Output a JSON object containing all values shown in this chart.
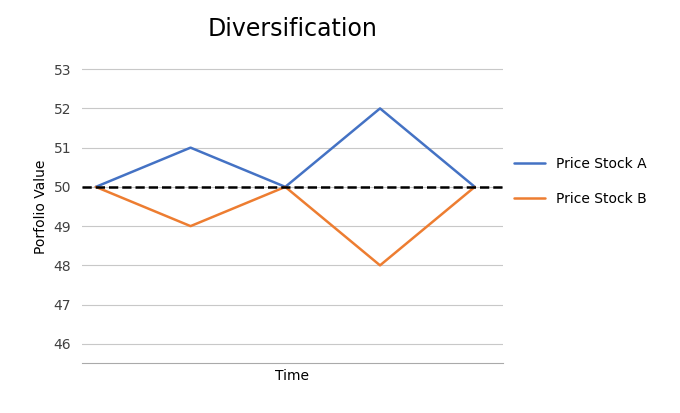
{
  "title": "Diversification",
  "xlabel": "Time",
  "ylabel": "Porfolio Value",
  "stock_a": {
    "x": [
      0,
      1,
      2,
      3,
      4
    ],
    "y": [
      50,
      51,
      50,
      52,
      50
    ],
    "color": "#4472C4",
    "label": "Price Stock A",
    "linewidth": 1.8
  },
  "stock_b": {
    "x": [
      0,
      1,
      2,
      3,
      4
    ],
    "y": [
      50,
      49,
      50,
      48,
      50
    ],
    "color": "#ED7D31",
    "label": "Price Stock B",
    "linewidth": 1.8
  },
  "dashed_line": {
    "y": 50,
    "color": "black",
    "linestyle": "--",
    "linewidth": 1.8
  },
  "ylim": [
    45.5,
    53.5
  ],
  "yticks": [
    46,
    47,
    48,
    49,
    50,
    51,
    52,
    53
  ],
  "xlim": [
    -0.15,
    4.3
  ],
  "grid_color": "#C8C8C8",
  "background_color": "#FFFFFF",
  "title_fontsize": 17,
  "axis_label_fontsize": 10,
  "tick_fontsize": 10,
  "legend_fontsize": 10
}
